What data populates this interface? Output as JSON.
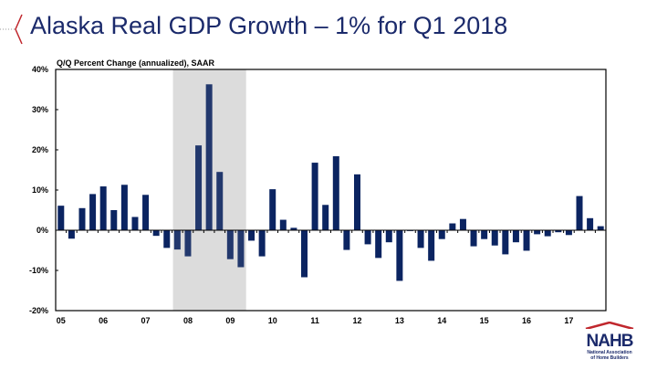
{
  "slide": {
    "title": "Alaska Real GDP Growth – 1% for Q1 2018"
  },
  "logo": {
    "text": "NAHB",
    "subtitle_line1": "National Association",
    "subtitle_line2": "of Home Builders"
  },
  "colors": {
    "bar": "#0b2461",
    "bar_in_recession": "#22386d",
    "recession_shading": "#dcdcdc",
    "title": "#1b2a6b",
    "accent_red": "#c0272d"
  },
  "chart_data": {
    "type": "bar",
    "title": "",
    "subtitle": "Q/Q Percent Change (annualized), SAAR",
    "ylim": [
      -20,
      40
    ],
    "yticks": [
      40,
      30,
      20,
      10,
      0,
      -10,
      -20
    ],
    "ytick_labels": [
      "40%",
      "30%",
      "20%",
      "10%",
      "0%",
      "-10%",
      "-20%"
    ],
    "xtick_labels": [
      "05",
      "06",
      "07",
      "08",
      "09",
      "10",
      "11",
      "12",
      "13",
      "14",
      "15",
      "16",
      "17"
    ],
    "grid": false,
    "recession_shading": {
      "from": "2007Q4",
      "to": "2009Q2"
    },
    "categories": [
      "2005Q1",
      "2005Q2",
      "2005Q3",
      "2005Q4",
      "2006Q1",
      "2006Q2",
      "2006Q3",
      "2006Q4",
      "2007Q1",
      "2007Q2",
      "2007Q3",
      "2007Q4",
      "2008Q1",
      "2008Q2",
      "2008Q3",
      "2008Q4",
      "2009Q1",
      "2009Q2",
      "2009Q3",
      "2009Q4",
      "2010Q1",
      "2010Q2",
      "2010Q3",
      "2010Q4",
      "2011Q1",
      "2011Q2",
      "2011Q3",
      "2011Q4",
      "2012Q1",
      "2012Q2",
      "2012Q3",
      "2012Q4",
      "2013Q1",
      "2013Q2",
      "2013Q3",
      "2013Q4",
      "2014Q1",
      "2014Q2",
      "2014Q3",
      "2014Q4",
      "2015Q1",
      "2015Q2",
      "2015Q3",
      "2015Q4",
      "2016Q1",
      "2016Q2",
      "2016Q3",
      "2016Q4",
      "2017Q1",
      "2017Q2",
      "2017Q3",
      "2017Q4"
    ],
    "values": [
      6.1,
      -2.1,
      5.5,
      9.0,
      10.9,
      5.0,
      11.3,
      3.3,
      8.8,
      -1.4,
      -4.4,
      -4.8,
      -6.5,
      21.1,
      36.3,
      14.5,
      -7.2,
      -9.2,
      -2.6,
      -6.5,
      10.2,
      2.6,
      0.6,
      -11.7,
      16.8,
      6.3,
      18.4,
      -4.9,
      13.9,
      -3.5,
      -6.9,
      -3.0,
      -12.6,
      -0.2,
      -4.4,
      -7.6,
      -2.2,
      1.7,
      2.8,
      -4.0,
      -2.2,
      -3.8,
      -6.0,
      -3.0,
      -5.1,
      -1.0,
      -1.5,
      -0.5,
      -1.2,
      8.5,
      3.0,
      1.0
    ]
  }
}
